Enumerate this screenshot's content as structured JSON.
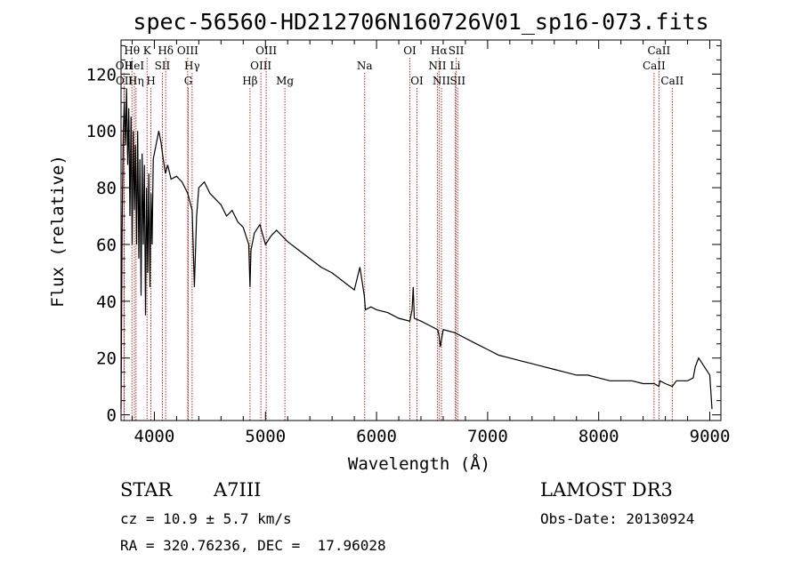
{
  "chart_data": {
    "type": "line",
    "title": "spec-56560-HD212706N160726V01_sp16-073.fits",
    "xlabel": "Wavelength (Å)",
    "ylabel": "Flux (relative)",
    "xlim": [
      3700,
      9100
    ],
    "ylim": [
      -2,
      132
    ],
    "x_ticks": [
      4000,
      5000,
      6000,
      7000,
      8000,
      9000
    ],
    "y_ticks": [
      0,
      20,
      40,
      60,
      80,
      100,
      120
    ],
    "series": [
      {
        "name": "spectrum",
        "x": [
          3700,
          3710,
          3720,
          3730,
          3740,
          3750,
          3760,
          3770,
          3780,
          3790,
          3800,
          3810,
          3820,
          3830,
          3840,
          3850,
          3860,
          3870,
          3880,
          3890,
          3900,
          3910,
          3920,
          3930,
          3940,
          3950,
          3960,
          3970,
          3980,
          3990,
          4000,
          4020,
          4040,
          4060,
          4080,
          4100,
          4120,
          4150,
          4200,
          4250,
          4300,
          4340,
          4360,
          4380,
          4400,
          4450,
          4500,
          4550,
          4600,
          4650,
          4700,
          4750,
          4800,
          4850,
          4861,
          4870,
          4900,
          4950,
          5000,
          5050,
          5100,
          5200,
          5300,
          5400,
          5500,
          5600,
          5700,
          5800,
          5850,
          5890,
          5900,
          5950,
          6000,
          6100,
          6200,
          6300,
          6320,
          6330,
          6340,
          6400,
          6500,
          6550,
          6563,
          6575,
          6600,
          6700,
          6800,
          6900,
          7000,
          7100,
          7200,
          7300,
          7400,
          7500,
          7600,
          7700,
          7800,
          7900,
          8000,
          8100,
          8200,
          8300,
          8400,
          8500,
          8542,
          8550,
          8600,
          8662,
          8700,
          8800,
          8850,
          8870,
          8900,
          8950,
          9000,
          9020
        ],
        "y": [
          2,
          65,
          100,
          110,
          95,
          115,
          88,
          108,
          70,
          105,
          60,
          100,
          72,
          95,
          60,
          100,
          55,
          90,
          42,
          92,
          60,
          88,
          35,
          80,
          50,
          85,
          45,
          78,
          60,
          90,
          92,
          96,
          100,
          96,
          90,
          85,
          88,
          83,
          84,
          82,
          78,
          72,
          45,
          70,
          80,
          82,
          78,
          76,
          74,
          70,
          72,
          68,
          66,
          60,
          45,
          58,
          64,
          67,
          60,
          63,
          65,
          61,
          58,
          55,
          52,
          50,
          47,
          44,
          52,
          42,
          37,
          38,
          37,
          36,
          34,
          33,
          37,
          45,
          34,
          33,
          31,
          30,
          28,
          24,
          30,
          29,
          27,
          25,
          23,
          21,
          20,
          19,
          18,
          17,
          16,
          15,
          14,
          14,
          13,
          12,
          12,
          12,
          11,
          11,
          10,
          12,
          11,
          10,
          12,
          12,
          13,
          17,
          20,
          17,
          14,
          2
        ]
      }
    ],
    "lines": [
      {
        "name": "OII",
        "wl": 3727,
        "row": 1
      },
      {
        "name": "OII",
        "wl": 3729,
        "row": 2
      },
      {
        "name": "Hθ",
        "wl": 3798,
        "row": 0
      },
      {
        "name": "HeI",
        "wl": 3820,
        "row": 1
      },
      {
        "name": "Hη",
        "wl": 3835,
        "row": 2
      },
      {
        "name": "K",
        "wl": 3934,
        "row": 0
      },
      {
        "name": "H",
        "wl": 3969,
        "row": 2
      },
      {
        "name": "SII",
        "wl": 4072,
        "row": 1
      },
      {
        "name": "Hδ",
        "wl": 4102,
        "row": 0
      },
      {
        "name": "OIII",
        "wl": 4300,
        "row": 0
      },
      {
        "name": "Hγ",
        "wl": 4340,
        "row": 1
      },
      {
        "name": "G",
        "wl": 4305,
        "row": 2
      },
      {
        "name": "Hβ",
        "wl": 4861,
        "row": 2
      },
      {
        "name": "OIII",
        "wl": 4959,
        "row": 1
      },
      {
        "name": "OIII",
        "wl": 5007,
        "row": 0
      },
      {
        "name": "Mg",
        "wl": 5175,
        "row": 2
      },
      {
        "name": "Na",
        "wl": 5893,
        "row": 1
      },
      {
        "name": "OI",
        "wl": 6300,
        "row": 0
      },
      {
        "name": "OI",
        "wl": 6364,
        "row": 2
      },
      {
        "name": "Hα",
        "wl": 6563,
        "row": 0
      },
      {
        "name": "NII",
        "wl": 6548,
        "row": 1
      },
      {
        "name": "NII",
        "wl": 6584,
        "row": 2
      },
      {
        "name": "SII",
        "wl": 6717,
        "row": 0
      },
      {
        "name": "Li",
        "wl": 6708,
        "row": 1
      },
      {
        "name": "SII",
        "wl": 6731,
        "row": 2
      },
      {
        "name": "CaII",
        "wl": 8498,
        "row": 1
      },
      {
        "name": "CaII",
        "wl": 8542,
        "row": 0
      },
      {
        "name": "CaII",
        "wl": 8662,
        "row": 2
      }
    ]
  },
  "info": {
    "class": "STAR",
    "subclass": "A7III",
    "survey": "LAMOST DR3",
    "redshift": "cz = 10.9 ± 5.7 km/s",
    "obs_date": "Obs-Date: 20130924",
    "coords": "RA = 320.76236, DEC =  17.96028"
  }
}
